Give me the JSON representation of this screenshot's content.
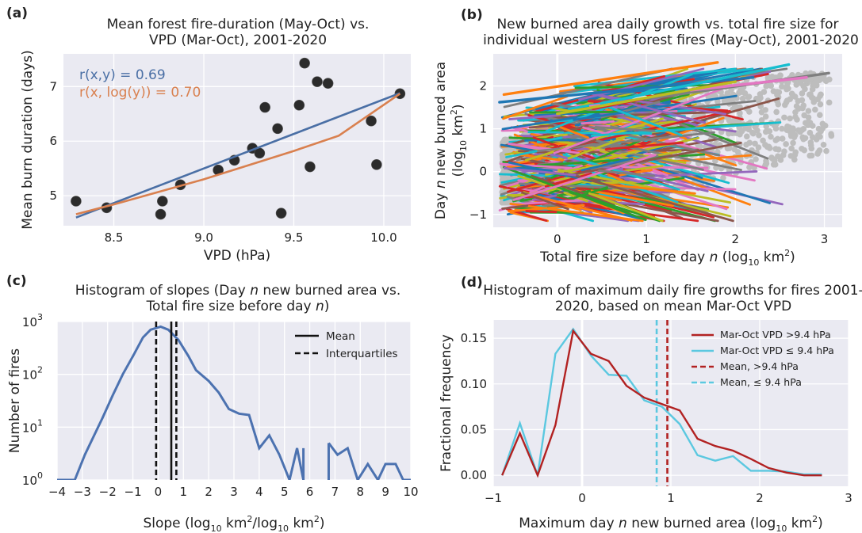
{
  "chart_data": [
    {
      "id": "a",
      "type": "scatter",
      "panel_label": "(a)",
      "title": [
        "Mean forest fire-duration (May-Oct) vs.",
        "VPD (Mar-Oct), 2001-2020"
      ],
      "xlabel": "VPD (hPa)",
      "ylabel": "Mean burn duration (days)",
      "xlim": [
        8.22,
        10.15
      ],
      "ylim": [
        4.45,
        7.6
      ],
      "xticks": [
        8.5,
        9.0,
        9.5,
        10.0
      ],
      "xtick_labels": [
        "8.5",
        "9.0",
        "9.5",
        "10.0"
      ],
      "yticks": [
        5,
        6,
        7
      ],
      "ytick_labels": [
        "5",
        "6",
        "7"
      ],
      "points": [
        [
          8.29,
          4.9
        ],
        [
          8.46,
          4.78
        ],
        [
          8.76,
          4.66
        ],
        [
          8.77,
          4.9
        ],
        [
          8.87,
          5.2
        ],
        [
          9.08,
          5.47
        ],
        [
          9.17,
          5.65
        ],
        [
          9.27,
          5.87
        ],
        [
          9.31,
          5.78
        ],
        [
          9.34,
          6.62
        ],
        [
          9.41,
          6.23
        ],
        [
          9.43,
          4.68
        ],
        [
          9.53,
          6.66
        ],
        [
          9.56,
          7.43
        ],
        [
          9.59,
          5.53
        ],
        [
          9.63,
          7.09
        ],
        [
          9.69,
          7.06
        ],
        [
          9.93,
          6.37
        ],
        [
          9.96,
          5.57
        ],
        [
          10.09,
          6.87
        ]
      ],
      "fits": [
        {
          "name": "linear",
          "color": "#4a6fa5",
          "x": [
            8.29,
            10.09
          ],
          "y": [
            4.6,
            6.88
          ]
        },
        {
          "name": "log",
          "color": "#d9804f",
          "x": [
            8.29,
            8.5,
            8.75,
            9.0,
            9.25,
            9.5,
            9.75,
            10.09
          ],
          "y": [
            4.66,
            4.84,
            5.07,
            5.3,
            5.56,
            5.82,
            6.1,
            6.87
          ]
        }
      ],
      "annotations": [
        {
          "text": "r(x,y) = 0.69",
          "color": "#4a6fa5"
        },
        {
          "text": "r(x, log(y)) = 0.70",
          "color": "#d9804f"
        }
      ]
    },
    {
      "id": "b",
      "type": "line",
      "panel_label": "(b)",
      "title": [
        "New burned area daily growth vs. total fire size for",
        "individual western US forest fires (May-Oct), 2001-2020"
      ],
      "xlabel": "Total fire size before day n (log10 km2)",
      "ylabel": "Day n new burned area (log10 km2)",
      "xlim": [
        -0.72,
        3.2
      ],
      "ylim": [
        -1.3,
        2.75
      ],
      "xticks": [
        0,
        1,
        2,
        3
      ],
      "xtick_labels": [
        "0",
        "1",
        "2",
        "3"
      ],
      "yticks": [
        -1,
        0,
        1,
        2
      ],
      "ytick_labels": [
        "−1",
        "0",
        "1",
        "2"
      ],
      "background_points_color": "#bdbdbd",
      "line_colors": [
        "#1f77b4",
        "#ff7f0e",
        "#2ca02c",
        "#d62728",
        "#9467bd",
        "#8c564b",
        "#e377c2",
        "#7f7f7f",
        "#bcbd22",
        "#17becf"
      ],
      "highlight_lines": [
        {
          "x0": -0.65,
          "y0": 1.62,
          "x1": 2.2,
          "y1": 2.2,
          "color": "#1f77b4"
        },
        {
          "x0": -0.6,
          "y0": 1.8,
          "x1": 1.8,
          "y1": 2.55,
          "color": "#ff7f0e"
        },
        {
          "x0": 0.5,
          "y0": 1.6,
          "x1": 2.6,
          "y1": 2.5,
          "color": "#17becf"
        },
        {
          "x0": 1.0,
          "y0": 1.7,
          "x1": 3.05,
          "y1": 2.3,
          "color": "#7f7f7f"
        },
        {
          "x0": 1.5,
          "y0": 1.9,
          "x1": 2.8,
          "y1": 2.2,
          "color": "#e377c2"
        },
        {
          "x0": 0.0,
          "y0": 1.35,
          "x1": 2.0,
          "y1": 2.1,
          "color": "#bcbd22"
        }
      ]
    },
    {
      "id": "c",
      "type": "line",
      "panel_label": "(c)",
      "title": [
        "Histogram of slopes (Day n new burned area vs.",
        "Total fire size before day n)"
      ],
      "xlabel": "Slope (log10 km2/log10 km2)",
      "ylabel": "Number of fires",
      "xlim": [
        -4,
        10
      ],
      "ylim_log10": [
        0,
        3
      ],
      "xticks": [
        -4,
        -3,
        -2,
        -1,
        0,
        1,
        2,
        3,
        4,
        5,
        6,
        7,
        8,
        9,
        10
      ],
      "xtick_labels": [
        "−4",
        "−3",
        "−2",
        "−1",
        "0",
        "1",
        "2",
        "3",
        "4",
        "5",
        "6",
        "7",
        "8",
        "9",
        "10"
      ],
      "yticks_log10": [
        0,
        1,
        2,
        3
      ],
      "ytick_labels": [
        "10",
        "10",
        "10",
        "10"
      ],
      "ytick_exponents": [
        "0",
        "1",
        "2",
        "3"
      ],
      "series": [
        {
          "name": "histogram",
          "color": "#4c72b0",
          "segments": [
            [
              [
                -4,
                1
              ],
              [
                -3.3,
                1
              ],
              [
                -2.9,
                3
              ],
              [
                -2.6,
                6
              ],
              [
                -2.2,
                15
              ],
              [
                -1.8,
                40
              ],
              [
                -1.4,
                100
              ],
              [
                -1.0,
                220
              ],
              [
                -0.6,
                500
              ],
              [
                -0.3,
                700
              ],
              [
                0.1,
                800
              ],
              [
                0.4,
                700
              ],
              [
                0.8,
                450
              ],
              [
                1.2,
                220
              ],
              [
                1.5,
                120
              ],
              [
                2.0,
                75
              ],
              [
                2.4,
                45
              ],
              [
                2.8,
                22
              ],
              [
                3.2,
                18
              ],
              [
                3.6,
                17
              ],
              [
                4.0,
                4
              ],
              [
                4.4,
                7
              ],
              [
                4.8,
                3
              ],
              [
                5.2,
                1
              ],
              [
                5.5,
                4
              ],
              [
                5.75,
                1
              ]
            ],
            [
              [
                6.75,
                5
              ],
              [
                7.1,
                3
              ],
              [
                7.5,
                4
              ],
              [
                7.9,
                1
              ],
              [
                8.3,
                2
              ],
              [
                8.7,
                1
              ],
              [
                9.0,
                2
              ],
              [
                9.4,
                2
              ],
              [
                9.7,
                1
              ],
              [
                10,
                1
              ]
            ]
          ]
        }
      ],
      "vlines": [
        {
          "name": "Mean",
          "x": 0.52,
          "style": "solid"
        },
        {
          "name": "Interquartiles",
          "x": -0.08,
          "style": "dashed"
        },
        {
          "name": "Interquartiles",
          "x": 0.72,
          "style": "dashed"
        }
      ],
      "legend": [
        "Mean",
        "Interquartiles"
      ],
      "legend_position": "top-right"
    },
    {
      "id": "d",
      "type": "line",
      "panel_label": "(d)",
      "title": [
        "Histogram of maximum daily fire growths for fires 2001-",
        "2020, based on mean Mar-Oct VPD"
      ],
      "xlabel": "Maximum day n new burned area (log10 km2)",
      "ylabel": "Fractional frequency",
      "xlim": [
        -1,
        3
      ],
      "ylim": [
        -0.012,
        0.17
      ],
      "xticks": [
        -1,
        0,
        1,
        2,
        3
      ],
      "xtick_labels": [
        "−1",
        "0",
        "1",
        "2",
        "3"
      ],
      "yticks": [
        0.0,
        0.05,
        0.1,
        0.15
      ],
      "ytick_labels": [
        "0.00",
        "0.05",
        "0.10",
        "0.15"
      ],
      "x": [
        -0.9,
        -0.7,
        -0.5,
        -0.3,
        -0.1,
        0.1,
        0.3,
        0.5,
        0.7,
        0.9,
        1.1,
        1.3,
        1.5,
        1.7,
        1.9,
        2.1,
        2.3,
        2.5,
        2.7
      ],
      "series": [
        {
          "name": "Mar-Oct VPD >9.4 hPa",
          "color": "#b22222",
          "values": [
            0.0,
            0.046,
            0.0,
            0.055,
            0.158,
            0.133,
            0.125,
            0.098,
            0.085,
            0.078,
            0.071,
            0.04,
            0.032,
            0.027,
            0.018,
            0.008,
            0.003,
            0.0,
            0.0
          ]
        },
        {
          "name": "Mar-Oct VPD ≤ 9.4 hPa",
          "color": "#5bc8e0",
          "values": [
            0.0,
            0.057,
            0.0,
            0.133,
            0.16,
            0.131,
            0.11,
            0.109,
            0.082,
            0.075,
            0.056,
            0.022,
            0.016,
            0.021,
            0.005,
            0.005,
            0.004,
            0.001,
            0.001
          ]
        }
      ],
      "vlines": [
        {
          "name": "Mean, >9.4 hPa",
          "x": 0.96,
          "color": "#b22222",
          "style": "dashed"
        },
        {
          "name": "Mean, ≤ 9.4 hPa",
          "x": 0.84,
          "color": "#5bc8e0",
          "style": "dashed"
        }
      ],
      "legend": [
        {
          "label": "Mar-Oct VPD >9.4 hPa",
          "color": "#b22222",
          "style": "solid"
        },
        {
          "label": "Mar-Oct VPD ≤ 9.4 hPa",
          "color": "#5bc8e0",
          "style": "solid"
        },
        {
          "label": "Mean, >9.4 hPa",
          "color": "#b22222",
          "style": "dashed"
        },
        {
          "label": "Mean, ≤ 9.4 hPa",
          "color": "#5bc8e0",
          "style": "dashed"
        }
      ],
      "legend_position": "top-right"
    }
  ],
  "colors": {
    "axes_bg": "#eaeaf2",
    "grid": "#ffffff",
    "point": "#2b2b2b"
  }
}
